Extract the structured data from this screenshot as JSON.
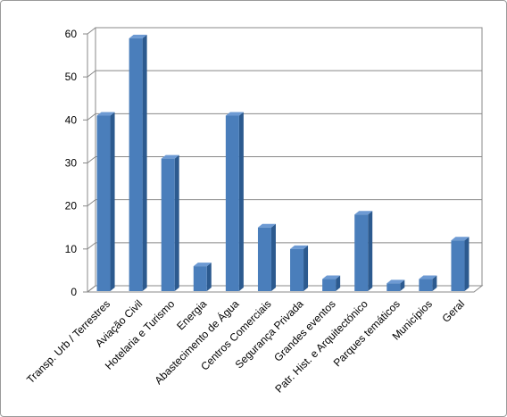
{
  "chart_data": {
    "type": "bar",
    "categories": [
      "Transp. Urb / Terrestres",
      "Aviação Civil",
      "Hotelaria e Turismo",
      "Energia",
      "Abastecimento de Água",
      "Centros Comerciais",
      "Segurança Privada",
      "Grandes eventos",
      "Patr. Hist. e Arquitectónico",
      "Parques temáticos",
      "Municípios",
      "Geral"
    ],
    "values": [
      41,
      59,
      31,
      6,
      41,
      15,
      10,
      3,
      18,
      2,
      3,
      12
    ],
    "color": "#4a7ebb",
    "ylim": [
      0,
      60
    ],
    "yticks": [
      0,
      10,
      20,
      30,
      40,
      50,
      60
    ],
    "grid": true
  }
}
